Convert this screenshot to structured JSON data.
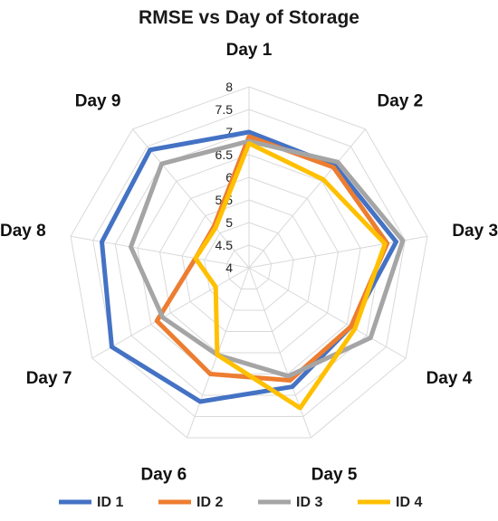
{
  "chart_data": {
    "type": "radar",
    "title": "RMSE vs Day of Storage",
    "categories": [
      "Day 1",
      "Day 2",
      "Day 3",
      "Day 4",
      "Day 5",
      "Day 6",
      "Day 7",
      "Day 8",
      "Day 9"
    ],
    "rlim": [
      4,
      8
    ],
    "ticks": [
      "4",
      "4.5",
      "5",
      "5.5",
      "6",
      "6.5",
      "7",
      "7.5",
      "8"
    ],
    "grid": true,
    "legend_position": "bottom",
    "series": [
      {
        "name": "ID 1",
        "color": "#4472C4",
        "values": [
          7.0,
          6.95,
          7.3,
          6.6,
          6.8,
          7.15,
          7.5,
          7.3,
          7.4
        ]
      },
      {
        "name": "ID 2",
        "color": "#ED7D31",
        "values": [
          6.9,
          6.9,
          7.1,
          6.6,
          6.65,
          6.5,
          6.35,
          5.2,
          5.2
        ]
      },
      {
        "name": "ID 3",
        "color": "#A5A5A5",
        "values": [
          6.8,
          7.05,
          7.45,
          7.1,
          6.55,
          6.05,
          6.2,
          6.65,
          7.0
        ]
      },
      {
        "name": "ID 4",
        "color": "#FFC000",
        "values": [
          6.75,
          6.55,
          7.05,
          6.7,
          7.3,
          6.05,
          4.85,
          5.2,
          5.15
        ]
      }
    ]
  }
}
